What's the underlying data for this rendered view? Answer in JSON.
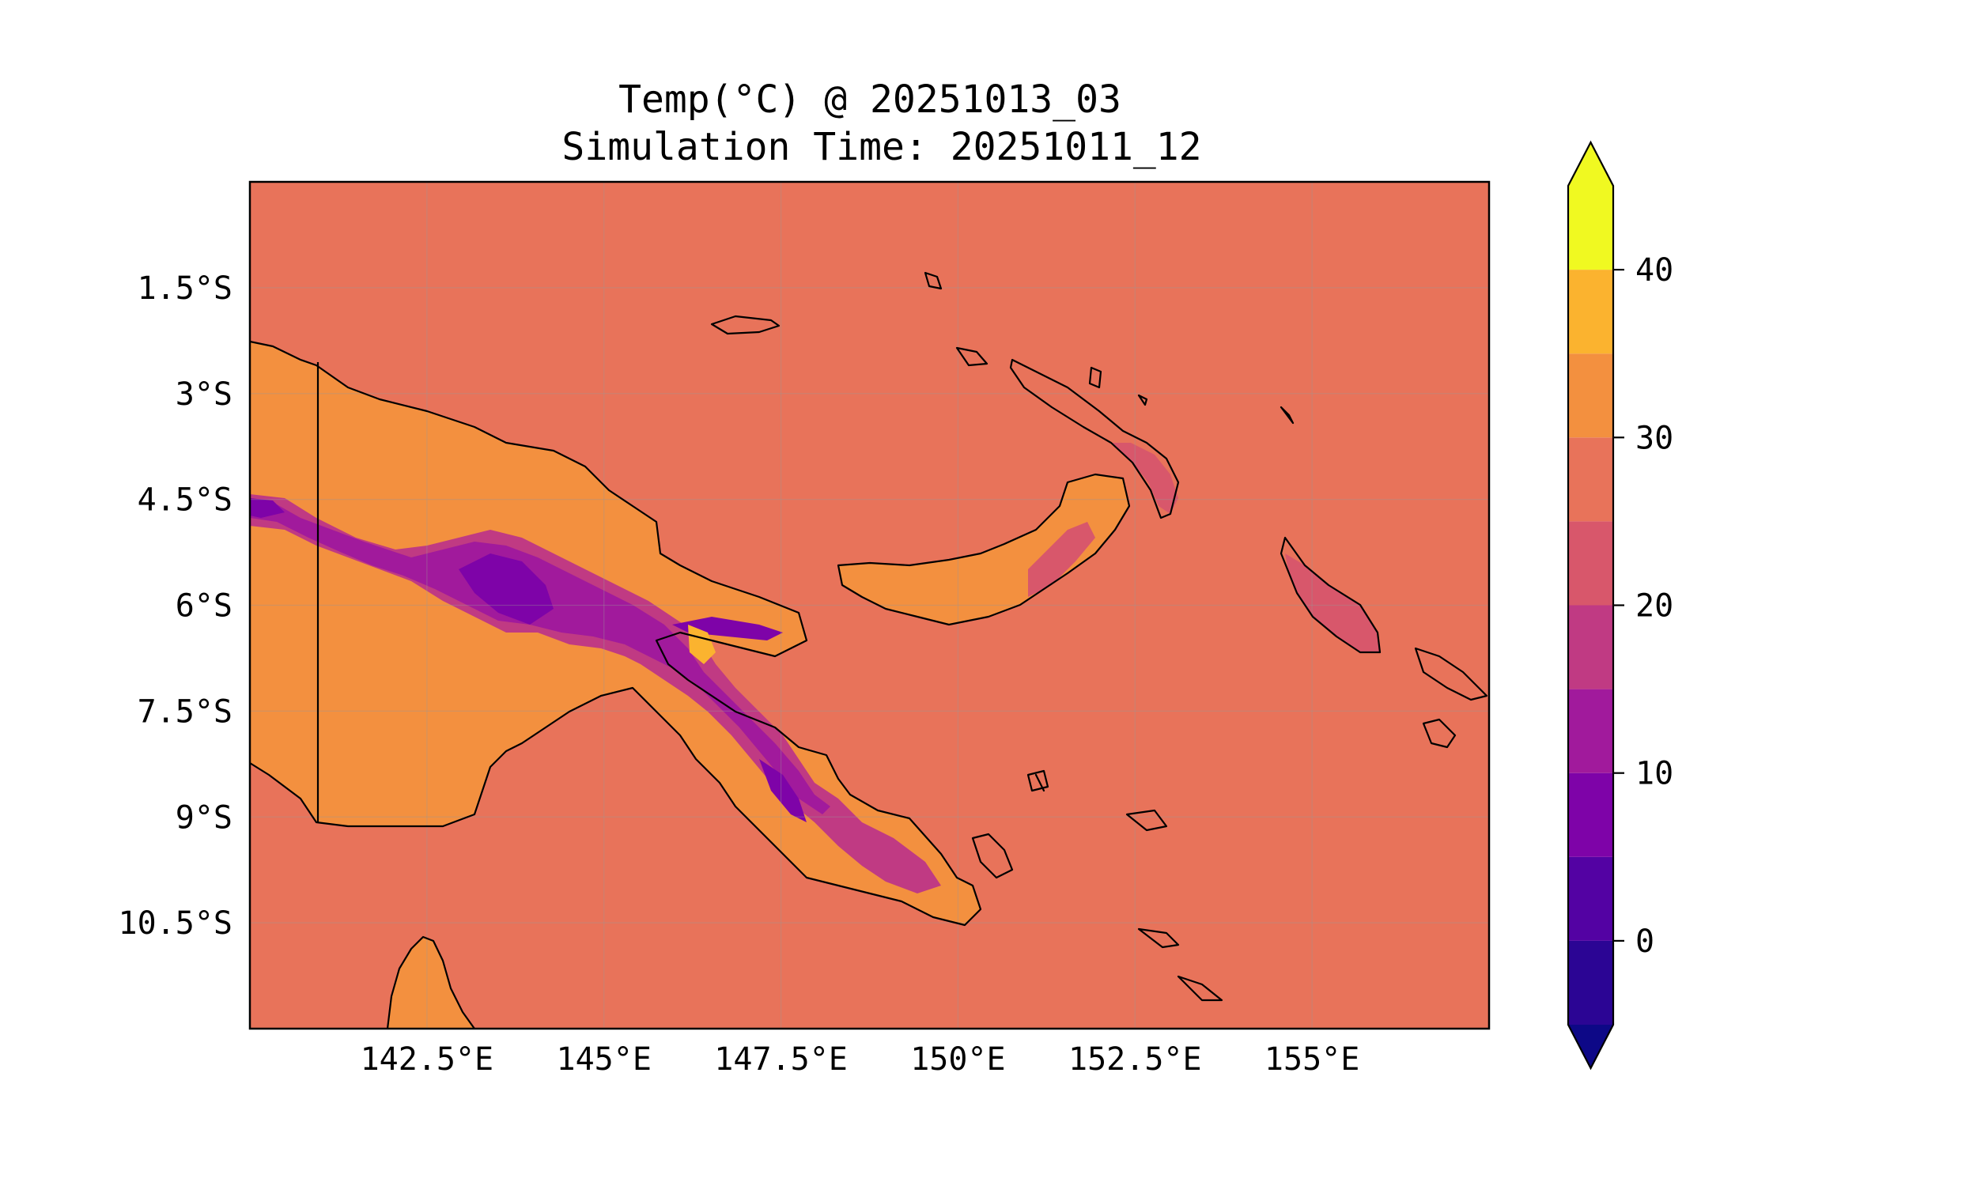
{
  "title": {
    "line1": "Temp(°C) @ 20251013_03",
    "line2": "Simulation Time: 20251011_12"
  },
  "map": {
    "lon_range": [
      140.0,
      157.5
    ],
    "lat_range": [
      -12.0,
      0.0
    ],
    "lon_ticks": [
      {
        "value": 142.5,
        "label": "142.5°E"
      },
      {
        "value": 145.0,
        "label": "145°E"
      },
      {
        "value": 147.5,
        "label": "147.5°E"
      },
      {
        "value": 150.0,
        "label": "150°E"
      },
      {
        "value": 152.5,
        "label": "152.5°E"
      },
      {
        "value": 155.0,
        "label": "155°E"
      }
    ],
    "lat_ticks": [
      {
        "value": -1.5,
        "label": "1.5°S"
      },
      {
        "value": -3.0,
        "label": "3°S"
      },
      {
        "value": -4.5,
        "label": "4.5°S"
      },
      {
        "value": -6.0,
        "label": "6°S"
      },
      {
        "value": -7.5,
        "label": "7.5°S"
      },
      {
        "value": -9.0,
        "label": "9°S"
      },
      {
        "value": -10.5,
        "label": "10.5°S"
      }
    ],
    "gridlines": true,
    "background_color": "#e8735a"
  },
  "colorbar": {
    "levels": [
      -5,
      0,
      5,
      10,
      15,
      20,
      25,
      30,
      35,
      40,
      45
    ],
    "colors": [
      "#2b0594",
      "#5302a3",
      "#7e03a8",
      "#a11a9c",
      "#c03a83",
      "#d8576b",
      "#e8735a",
      "#f3903f",
      "#fbb32f",
      "#f0f921"
    ],
    "under_color": "#0d0887",
    "over_color": "#f0f921",
    "extend": "both",
    "tick_labels": [
      {
        "value": 0,
        "label": "0"
      },
      {
        "value": 10,
        "label": "10"
      },
      {
        "value": 20,
        "label": "20"
      },
      {
        "value": 30,
        "label": "30"
      },
      {
        "value": 40,
        "label": "40"
      }
    ]
  }
}
